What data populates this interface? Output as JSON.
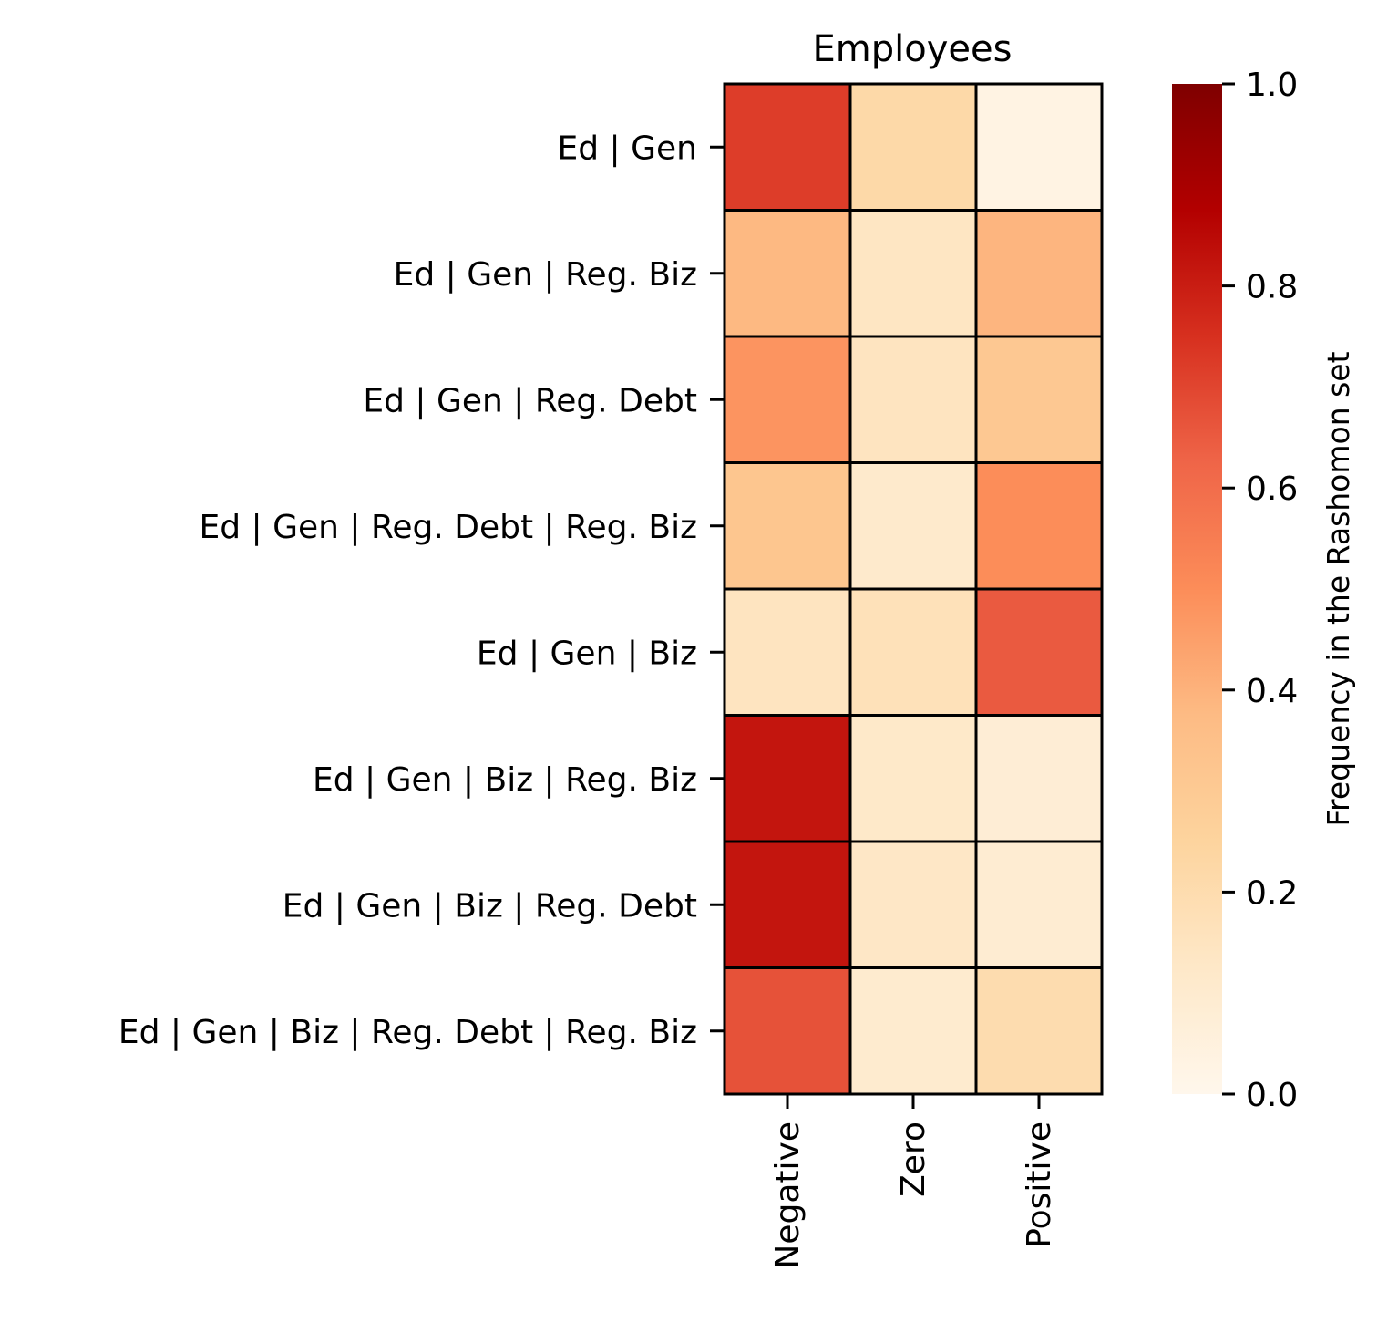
{
  "chart_data": {
    "type": "heatmap",
    "title": "Employees",
    "xlabel": "",
    "ylabel": "",
    "columns": [
      "Negative",
      "Zero",
      "Positive"
    ],
    "rows": [
      "Ed | Gen",
      "Ed | Gen | Reg. Biz",
      "Ed | Gen | Reg. Debt",
      "Ed | Gen | Reg. Debt | Reg. Biz",
      "Ed | Gen | Biz",
      "Ed | Gen | Biz | Reg. Biz",
      "Ed | Gen | Biz | Reg. Debt",
      "Ed | Gen | Biz | Reg. Debt | Reg. Biz"
    ],
    "values": [
      [
        0.72,
        0.22,
        0.03
      ],
      [
        0.38,
        0.14,
        0.39
      ],
      [
        0.48,
        0.15,
        0.31
      ],
      [
        0.32,
        0.11,
        0.5
      ],
      [
        0.15,
        0.17,
        0.65
      ],
      [
        0.82,
        0.12,
        0.08
      ],
      [
        0.82,
        0.13,
        0.09
      ],
      [
        0.67,
        0.1,
        0.2
      ]
    ],
    "colorbar": {
      "label": "Frequency in the Rashomon set",
      "min": 0.0,
      "max": 1.0,
      "ticks": [
        0.0,
        0.2,
        0.4,
        0.6,
        0.8,
        1.0
      ],
      "tick_labels": [
        "0.0",
        "0.2",
        "0.4",
        "0.6",
        "0.8",
        "1.0"
      ],
      "colormap": "OrRd",
      "colormap_stops": [
        "#fff7ec",
        "#fee8c8",
        "#fdd49e",
        "#fdbb84",
        "#fc8d59",
        "#ef6548",
        "#d7301f",
        "#b30000",
        "#7f0000"
      ]
    },
    "grid": true,
    "cell_border_color": "#000000"
  }
}
